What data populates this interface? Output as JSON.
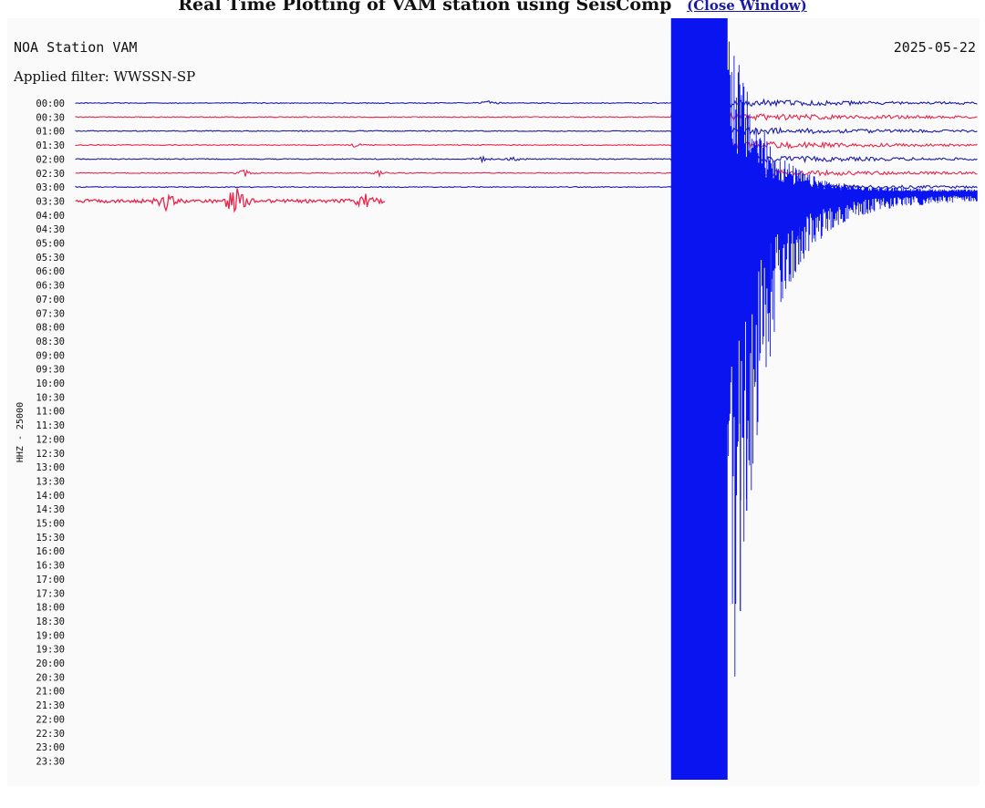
{
  "page": {
    "title": "Real Time Plotting of VAM station using SeisComp",
    "close_link": "(Close Window)"
  },
  "chart_data": {
    "type": "line",
    "subtype": "helicorder",
    "station_label": "NOA Station VAM",
    "date": "2025-05-22",
    "filter_label": "Applied filter: WWSSN-SP",
    "scale_label": "HHZ - 25000",
    "row_labels": [
      "00:00",
      "00:30",
      "01:00",
      "01:30",
      "02:00",
      "02:30",
      "03:00",
      "03:30",
      "04:00",
      "04:30",
      "05:00",
      "05:30",
      "06:00",
      "06:30",
      "07:00",
      "07:30",
      "08:00",
      "08:30",
      "09:00",
      "09:30",
      "10:00",
      "10:30",
      "11:00",
      "11:30",
      "12:00",
      "12:30",
      "13:00",
      "13:30",
      "14:00",
      "14:30",
      "15:00",
      "15:30",
      "16:00",
      "16:30",
      "17:00",
      "17:30",
      "18:00",
      "18:30",
      "19:00",
      "19:30",
      "20:00",
      "20:30",
      "21:00",
      "21:30",
      "22:00",
      "22:30",
      "23:00",
      "23:30"
    ],
    "rows_recorded": 8,
    "row_minutes": 30,
    "row_colors": [
      "#1a1aa8",
      "#e8254a"
    ],
    "quake_color": "#0a14f0",
    "events": [
      {
        "row": "00:00",
        "minute": 13.7,
        "amplitude": 4
      },
      {
        "row": "01:30",
        "minute": 9.3,
        "amplitude": 3
      },
      {
        "row": "02:00",
        "minute": 13.5,
        "amplitude": 4
      },
      {
        "row": "02:00",
        "minute": 14.6,
        "amplitude": 4
      },
      {
        "row": "02:30",
        "minute": 5.6,
        "amplitude": 5
      },
      {
        "row": "02:30",
        "minute": 10.1,
        "amplitude": 3
      },
      {
        "row": "03:30",
        "minute": 3.0,
        "amplitude": 9
      },
      {
        "row": "03:30",
        "minute": 5.2,
        "amplitude": 8
      },
      {
        "row": "03:30",
        "minute": 5.4,
        "amplitude": 10
      },
      {
        "row": "03:30",
        "minute": 9.6,
        "amplitude": 8
      }
    ],
    "last_row_end_minute": 10.3,
    "earthquake_onset": {
      "row": "03:00",
      "minute": 19.8
    }
  }
}
